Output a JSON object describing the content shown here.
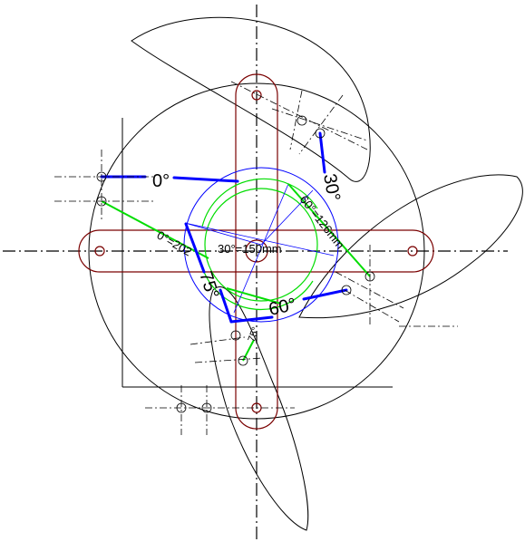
{
  "labels": {
    "angle_0": "0°",
    "angle_30": "30°",
    "angle_60": "60°",
    "angle_75": "75°",
    "dim_0": "0°=202",
    "dim_30": "30°=150mm",
    "dim_60": "60°=126mm",
    "dim_75": "75°"
  },
  "colors": {
    "outline": "#000000",
    "slot": "#7a0000",
    "blue": "#0000ff",
    "green": "#00dd00"
  }
}
